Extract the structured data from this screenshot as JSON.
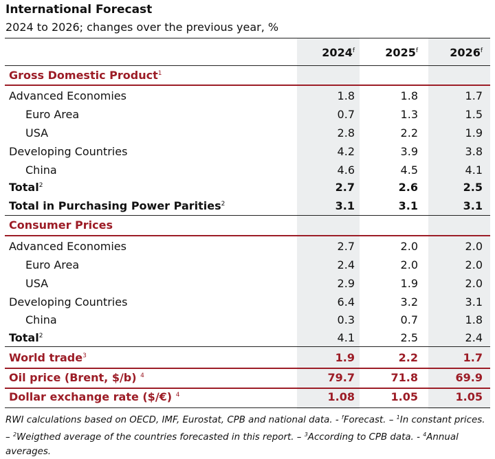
{
  "title": "International Forecast",
  "subtitle": "2024 to 2026; changes over the previous year, %",
  "columns": [
    "2024",
    "2025",
    "2026"
  ],
  "column_mark": "f",
  "sections": {
    "gdp": {
      "heading": "Gross Domestic Product",
      "heading_note": "1",
      "rows": [
        {
          "label": "Advanced Economies",
          "values": [
            "1.8",
            "1.8",
            "1.7"
          ]
        },
        {
          "label": "Euro Area",
          "values": [
            "0.7",
            "1.3",
            "1.5"
          ]
        },
        {
          "label": "USA",
          "values": [
            "2.8",
            "2.2",
            "1.9"
          ]
        },
        {
          "label": "Developing Countries",
          "values": [
            "4.2",
            "3.9",
            "3.8"
          ]
        },
        {
          "label": "China",
          "values": [
            "4.6",
            "4.5",
            "4.1"
          ]
        },
        {
          "label": "Total",
          "note": "2",
          "values": [
            "2.7",
            "2.6",
            "2.5"
          ]
        },
        {
          "label": "Total in Purchasing Power Parities",
          "note": "2",
          "values": [
            "3.1",
            "3.1",
            "3.1"
          ]
        }
      ]
    },
    "cpi": {
      "heading": "Consumer Prices",
      "rows": [
        {
          "label": "Advanced Economies",
          "values": [
            "2.7",
            "2.0",
            "2.0"
          ]
        },
        {
          "label": "Euro Area",
          "values": [
            "2.4",
            "2.0",
            "2.0"
          ]
        },
        {
          "label": "USA",
          "values": [
            "2.9",
            "1.9",
            "2.0"
          ]
        },
        {
          "label": "Developing Countries",
          "values": [
            "6.4",
            "3.2",
            "3.1"
          ]
        },
        {
          "label": "China",
          "values": [
            "0.3",
            "0.7",
            "1.8"
          ]
        },
        {
          "label": "Total",
          "note": "2",
          "values": [
            "4.1",
            "2.5",
            "2.4"
          ]
        }
      ]
    },
    "world_trade": {
      "label": "World trade",
      "note": "3",
      "values": [
        "1.9",
        "2.2",
        "1.7"
      ]
    },
    "oil": {
      "label": "Oil price (Brent, $/b)",
      "note": "4",
      "values": [
        "79.7",
        "71.8",
        "69.9"
      ]
    },
    "fx": {
      "label": "Dollar exchange rate ($/€)",
      "note": "4",
      "values": [
        "1.08",
        "1.05",
        "1.05"
      ]
    }
  },
  "footnote": {
    "part1": "RWI calculations based on OECD, IMF, Eurostat, CPB and national data. - ",
    "m_f": "f",
    "part2": "Forecast. – ",
    "m1": "1",
    "part3": "In constant prices. – ",
    "m2": "2",
    "part4": "Weigthed average of the countries forecasted in this report. – ",
    "m3": "3",
    "part5": "According to CPB data. - ",
    "m4": "4",
    "part6": "Annual averages."
  }
}
